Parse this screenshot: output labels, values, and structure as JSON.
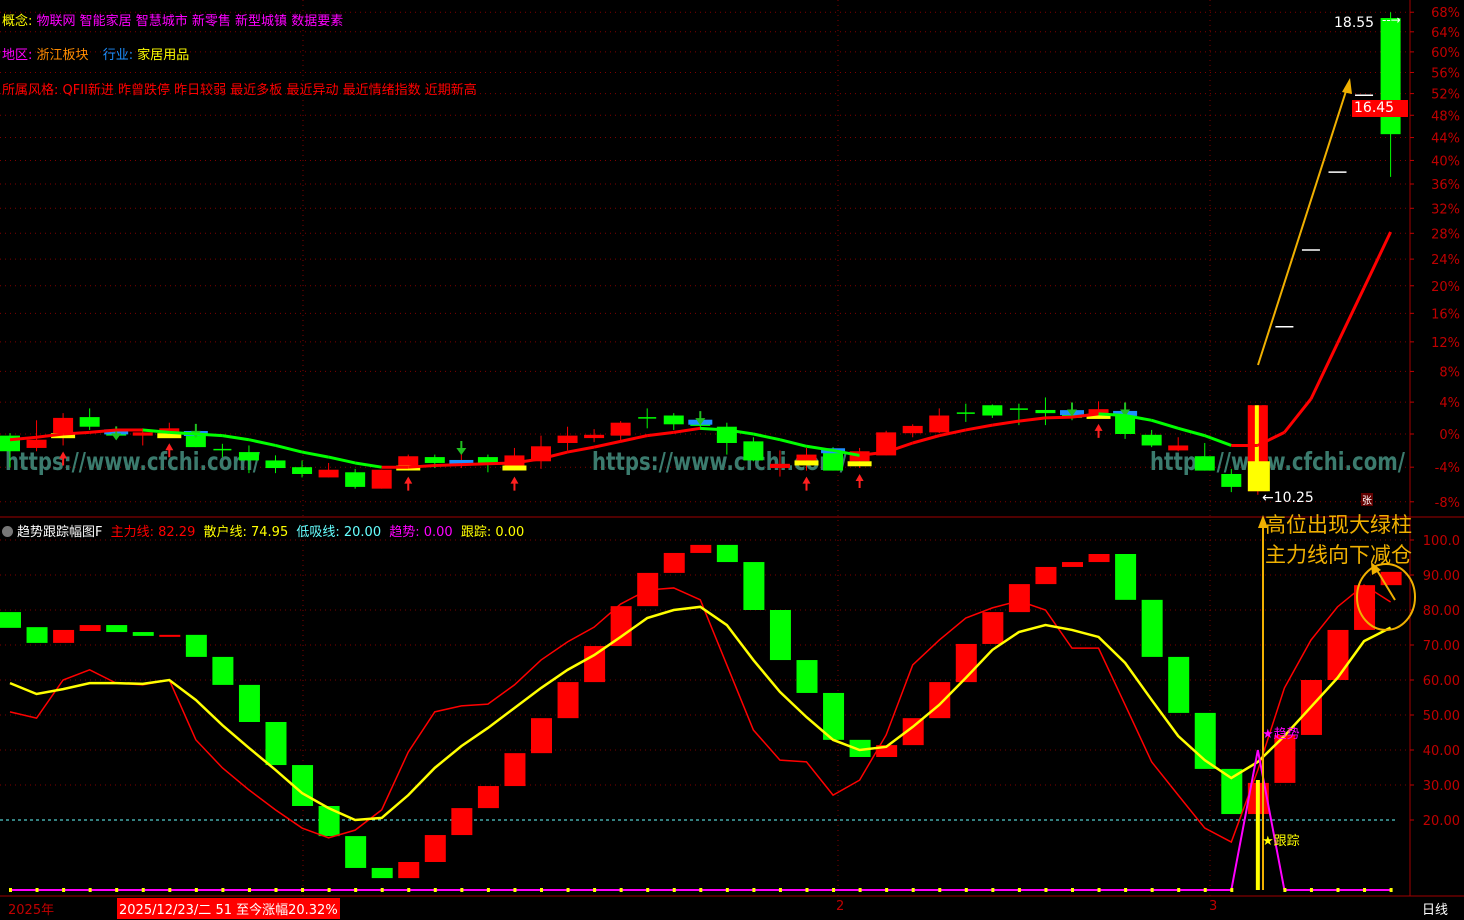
{
  "info": {
    "concept_label": "概念:",
    "concepts": "物联网 智能家居 智慧城市 新零售 新型城镇 数据要素",
    "region_label": "地区:",
    "region": "浙江板块",
    "industry_label": "行业:",
    "industry": "家居用品",
    "style_label": "所属风格:",
    "styles": "QFII新进 昨曾跌停 昨日较弱 最近多板 最近异动 最近情绪指数 近期新高"
  },
  "watermark": "https://www.cfchi.com/",
  "colors": {
    "up": "#ff0000",
    "down": "#00ff00",
    "main_line": "#ff0000",
    "retail_line": "#ffff00",
    "low_line": "#66ffff",
    "trend": "#ff00ff",
    "track": "#ffff00",
    "axis": "#c00000",
    "annotation": "#f0b000"
  },
  "price_pane": {
    "axis_labels": [
      "68%",
      "64%",
      "60%",
      "56%",
      "52%",
      "48%",
      "44%",
      "40%",
      "36%",
      "32%",
      "28%",
      "24%",
      "20%",
      "16%",
      "12%",
      "8%",
      "4%",
      "0%",
      "-4%",
      "-8%"
    ],
    "high_label": "18.55",
    "low_label": "←10.25",
    "last_price": "16.45",
    "candles": [
      [
        -0.2,
        -2.1,
        0.1,
        -4.0
      ],
      [
        -1.7,
        -0.7,
        1.7,
        -2.1
      ],
      [
        0.1,
        2.0,
        2.6,
        -1.4
      ],
      [
        2.1,
        0.9,
        3.2,
        0.5
      ],
      [
        0.2,
        -0.2,
        0.7,
        -0.7
      ],
      [
        -0.2,
        0.2,
        0.7,
        -1.4
      ],
      [
        0.1,
        0.7,
        1.4,
        -0.4
      ],
      [
        0.0,
        -1.6,
        1.0,
        -1.6
      ],
      [
        -1.9,
        -1.9,
        -1.2,
        -2.8
      ],
      [
        -2.2,
        -3.2,
        -1.4,
        -4.7
      ],
      [
        -3.2,
        -4.1,
        -2.6,
        -4.7
      ],
      [
        -4.0,
        -4.8,
        -3.2,
        -5.2
      ],
      [
        -5.2,
        -4.3,
        -3.5,
        -5.2
      ],
      [
        -4.6,
        -6.3,
        -4.2,
        -6.5
      ],
      [
        -6.5,
        -4.3,
        -4.3,
        -6.5
      ],
      [
        -3.8,
        -2.7,
        -2.5,
        -4.4
      ],
      [
        -2.8,
        -3.5,
        -2.5,
        -4.1
      ],
      [
        -3.8,
        -3.5,
        -1.1,
        -4.1
      ],
      [
        -2.8,
        -3.7,
        -2.5,
        -4.6
      ],
      [
        -3.8,
        -2.6,
        -1.7,
        -4.4
      ],
      [
        -3.3,
        -1.5,
        -0.2,
        -4.2
      ],
      [
        -1.1,
        -0.2,
        0.9,
        -2.0
      ],
      [
        -0.5,
        -0.1,
        0.6,
        -1.0
      ],
      [
        -0.2,
        1.4,
        1.6,
        -0.9
      ],
      [
        2.0,
        2.0,
        3.2,
        0.7
      ],
      [
        2.3,
        1.2,
        2.6,
        0.5
      ],
      [
        1.4,
        1.0,
        2.6,
        0.5
      ],
      [
        0.9,
        -1.1,
        1.4,
        -2.5
      ],
      [
        -0.9,
        -3.2,
        -0.4,
        -3.3
      ],
      [
        -4.1,
        -3.6,
        -2.0,
        -5.1
      ],
      [
        -3.2,
        -2.5,
        -1.7,
        -4.4
      ],
      [
        -2.1,
        -4.4,
        -1.6,
        -4.4
      ],
      [
        -3.3,
        -2.1,
        -1.7,
        -4.1
      ],
      [
        -2.6,
        0.2,
        0.4,
        -2.6
      ],
      [
        0.1,
        1.0,
        1.2,
        -0.4
      ],
      [
        0.2,
        2.3,
        3.2,
        0.1
      ],
      [
        2.6,
        2.6,
        3.8,
        1.5
      ],
      [
        3.6,
        2.3,
        3.7,
        2.0
      ],
      [
        3.1,
        3.1,
        3.8,
        1.1
      ],
      [
        3.0,
        2.6,
        4.6,
        1.1
      ],
      [
        2.6,
        2.0,
        3.7,
        1.7
      ],
      [
        2.5,
        3.1,
        4.1,
        2.0
      ],
      [
        2.5,
        0.0,
        3.7,
        -0.6
      ],
      [
        -0.1,
        -1.4,
        0.5,
        -1.6
      ],
      [
        -2.0,
        -1.4,
        -0.4,
        -2.1
      ],
      [
        -2.7,
        -4.4,
        -1.1,
        -4.4
      ],
      [
        -4.8,
        -6.3,
        -4.2,
        -6.9
      ],
      [
        -6.8,
        3.6,
        3.6,
        -7.2
      ],
      [
        14.1,
        14.1,
        14.1,
        14.1
      ],
      [
        25.4,
        25.4,
        25.4,
        25.4
      ],
      [
        38.0,
        38.0,
        38.0,
        38.0
      ],
      [
        51.7,
        51.7,
        51.7,
        51.7
      ],
      [
        66.8,
        44.6,
        68.0,
        37.2
      ]
    ],
    "marks": {
      "2": "yellow",
      "4": "blue",
      "6": "yellow",
      "7": "blue",
      "15": "yellow",
      "17": "blue",
      "19": "yellow",
      "26": "blue",
      "30": "yellow",
      "31": "blue",
      "32": "yellow",
      "40": "blue",
      "41": "yellow",
      "42": "blue",
      "47": "yellow"
    },
    "signals": {
      "2": "buy",
      "6": "buy",
      "15": "buy",
      "19": "buy",
      "30": "buy",
      "32": "buy",
      "41": "buy",
      "4": "sell",
      "7": "sell",
      "17": "sell",
      "26": "sell",
      "40": "sell",
      "42": "sell"
    },
    "trend_line": [
      -0.7,
      -0.4,
      0,
      0.2,
      0.5,
      0.5,
      0.2,
      0,
      -0.2,
      -0.7,
      -1.4,
      -2.2,
      -2.8,
      -3.5,
      -4.0,
      -4.0,
      -3.8,
      -3.7,
      -3.6,
      -3.5,
      -3.0,
      -2.2,
      -1.6,
      -0.9,
      -0.2,
      0.2,
      0.7,
      0.5,
      0,
      -0.7,
      -1.5,
      -2.0,
      -2.6,
      -2.2,
      -1.1,
      -0.2,
      0.5,
      1.1,
      1.6,
      2.0,
      2.1,
      2.5,
      2.3,
      1.7,
      0.7,
      -0.2,
      -1.4,
      -1.4,
      0.2,
      4.4,
      11.8,
      19.7,
      28.2
    ]
  },
  "indicator": {
    "title": "趋势跟踪幅图F",
    "main_label": "主力线: 82.29",
    "retail_label": "散户线: 74.95",
    "low_label": "低吸线: 20.00",
    "trend_label": "趋势: 0.00",
    "track_label": "跟踪: 0.00",
    "axis_labels": [
      "100.0",
      "90.00",
      "80.00",
      "70.00",
      "60.00",
      "50.00",
      "40.00",
      "30.00",
      "20.00"
    ],
    "low_level": 20,
    "bars": [
      [
        79.4,
        74.9,
        "down"
      ],
      [
        75.1,
        70.6,
        "down"
      ],
      [
        74.3,
        70.6,
        "up"
      ],
      [
        75.7,
        74.0,
        "up"
      ],
      [
        75.7,
        73.7,
        "down"
      ],
      [
        73.7,
        72.6,
        "down"
      ],
      [
        72.9,
        72.6,
        "up"
      ],
      [
        72.9,
        66.6,
        "down"
      ],
      [
        66.6,
        58.6,
        "down"
      ],
      [
        58.6,
        48.0,
        "down"
      ],
      [
        48.0,
        35.7,
        "down"
      ],
      [
        35.7,
        24.0,
        "down"
      ],
      [
        24.0,
        15.4,
        "down"
      ],
      [
        15.4,
        6.3,
        "down"
      ],
      [
        6.3,
        3.4,
        "down"
      ],
      [
        8.0,
        3.4,
        "up"
      ],
      [
        15.7,
        8.0,
        "up"
      ],
      [
        23.4,
        15.7,
        "up"
      ],
      [
        29.7,
        23.4,
        "up"
      ],
      [
        39.1,
        29.7,
        "up"
      ],
      [
        49.1,
        39.1,
        "up"
      ],
      [
        59.4,
        49.1,
        "up"
      ],
      [
        69.7,
        59.4,
        "up"
      ],
      [
        81.1,
        69.7,
        "up"
      ],
      [
        90.6,
        81.1,
        "up"
      ],
      [
        96.3,
        90.6,
        "up"
      ],
      [
        98.6,
        96.3,
        "up"
      ],
      [
        98.6,
        93.7,
        "down"
      ],
      [
        93.7,
        80.0,
        "down"
      ],
      [
        80.0,
        65.7,
        "down"
      ],
      [
        65.7,
        56.3,
        "down"
      ],
      [
        56.3,
        42.9,
        "down"
      ],
      [
        42.9,
        38.0,
        "down"
      ],
      [
        41.4,
        38.0,
        "up"
      ],
      [
        49.1,
        41.4,
        "up"
      ],
      [
        59.4,
        49.1,
        "up"
      ],
      [
        70.3,
        59.4,
        "up"
      ],
      [
        79.4,
        70.3,
        "up"
      ],
      [
        87.4,
        79.4,
        "up"
      ],
      [
        92.3,
        87.4,
        "up"
      ],
      [
        93.7,
        92.3,
        "up"
      ],
      [
        96.0,
        93.7,
        "up"
      ],
      [
        96.0,
        82.9,
        "down"
      ],
      [
        82.9,
        66.6,
        "down"
      ],
      [
        66.6,
        50.6,
        "down"
      ],
      [
        50.6,
        34.6,
        "down"
      ],
      [
        34.6,
        21.7,
        "down"
      ],
      [
        30.6,
        21.7,
        "up"
      ],
      [
        44.3,
        30.6,
        "up"
      ],
      [
        60.0,
        44.3,
        "up"
      ],
      [
        74.3,
        60.0,
        "up"
      ],
      [
        87.1,
        74.3,
        "up"
      ],
      [
        90.9,
        87.1,
        "up"
      ]
    ],
    "main_line": [
      50.9,
      49.1,
      60.0,
      62.9,
      59.1,
      58.6,
      60.0,
      42.9,
      34.9,
      28.6,
      22.9,
      17.7,
      14.9,
      17.1,
      22.9,
      39.4,
      50.9,
      52.6,
      53.1,
      58.6,
      65.7,
      70.9,
      75.1,
      81.7,
      85.7,
      86.3,
      82.9,
      64.3,
      45.7,
      37.1,
      36.6,
      27.1,
      31.4,
      44.3,
      64.3,
      71.4,
      77.7,
      80.6,
      82.6,
      80.0,
      69.1,
      69.1,
      52.9,
      36.6,
      27.1,
      17.7,
      13.7,
      34.3,
      57.7,
      71.4,
      80.9,
      87.1,
      82.29
    ],
    "retail_line": [
      59.1,
      56.0,
      57.4,
      59.1,
      59.1,
      58.9,
      60.0,
      54.3,
      47.1,
      40.6,
      34.3,
      27.7,
      23.4,
      20.0,
      20.6,
      27.1,
      34.9,
      41.1,
      46.3,
      52.0,
      57.7,
      62.9,
      67.1,
      72.3,
      77.7,
      80.0,
      80.9,
      75.7,
      65.7,
      56.6,
      49.4,
      42.9,
      40.0,
      40.9,
      46.6,
      52.9,
      60.6,
      68.6,
      73.7,
      75.7,
      74.3,
      72.3,
      64.9,
      54.3,
      44.0,
      37.1,
      32.0,
      36.6,
      44.0,
      52.3,
      60.6,
      71.1,
      74.95
    ],
    "trend_spike_index": 47,
    "trend_spike_value": 40,
    "trend_star": "★趋势",
    "track_star": "★跟踪",
    "annotation_line1": "高位出现大绿柱",
    "annotation_line2": "主力线向下减仓",
    "badge": "张"
  },
  "bottom_bar": {
    "year": "2025年",
    "cursor_info": "2025/12/23/二 51 至今涨幅20.32%",
    "month_2": "2",
    "month_3": "3",
    "period": "日线"
  }
}
